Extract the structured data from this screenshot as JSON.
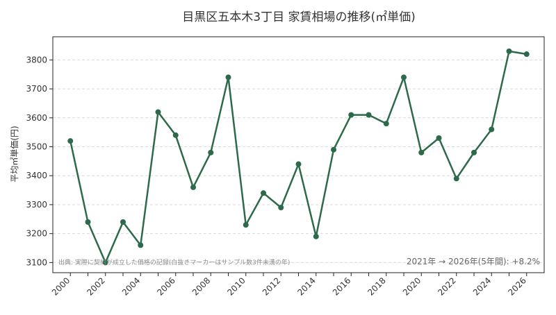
{
  "chart_data": {
    "type": "line",
    "title": "目黒区五本木3丁目 家賃相場の推移(㎡単価)",
    "xlabel": "",
    "ylabel": "平均㎡単価(円)",
    "x": [
      2000,
      2001,
      2002,
      2003,
      2004,
      2005,
      2006,
      2007,
      2008,
      2009,
      2010,
      2011,
      2012,
      2013,
      2014,
      2015,
      2016,
      2017,
      2018,
      2019,
      2020,
      2021,
      2022,
      2023,
      2024,
      2025,
      2026
    ],
    "series": [
      {
        "values": [
          3520,
          3240,
          3100,
          3240,
          3160,
          3620,
          3540,
          3360,
          3480,
          3740,
          3230,
          3340,
          3290,
          3440,
          3190,
          3490,
          3610,
          3610,
          3580,
          3740,
          3480,
          3530,
          3390,
          3480,
          3560,
          3830,
          3820
        ],
        "color": "#2d6a4a"
      }
    ],
    "x_tick_labels": [
      "2000",
      "2002",
      "2004",
      "2006",
      "2008",
      "2010",
      "2012",
      "2014",
      "2016",
      "2018",
      "2020",
      "2022",
      "2024",
      "2026"
    ],
    "y_ticks": [
      3100,
      3200,
      3300,
      3400,
      3500,
      3600,
      3700,
      3800
    ],
    "xlim": [
      1999,
      2027
    ],
    "ylim": [
      3065,
      3880
    ],
    "grid": true,
    "annotations": {
      "source_note": "出典: 実際に契約が成立した価格の記録(白抜きマーカーはサンプル数3件未満の年)",
      "change_note": "2021年 → 2026年(5年間): +8.2%"
    }
  }
}
